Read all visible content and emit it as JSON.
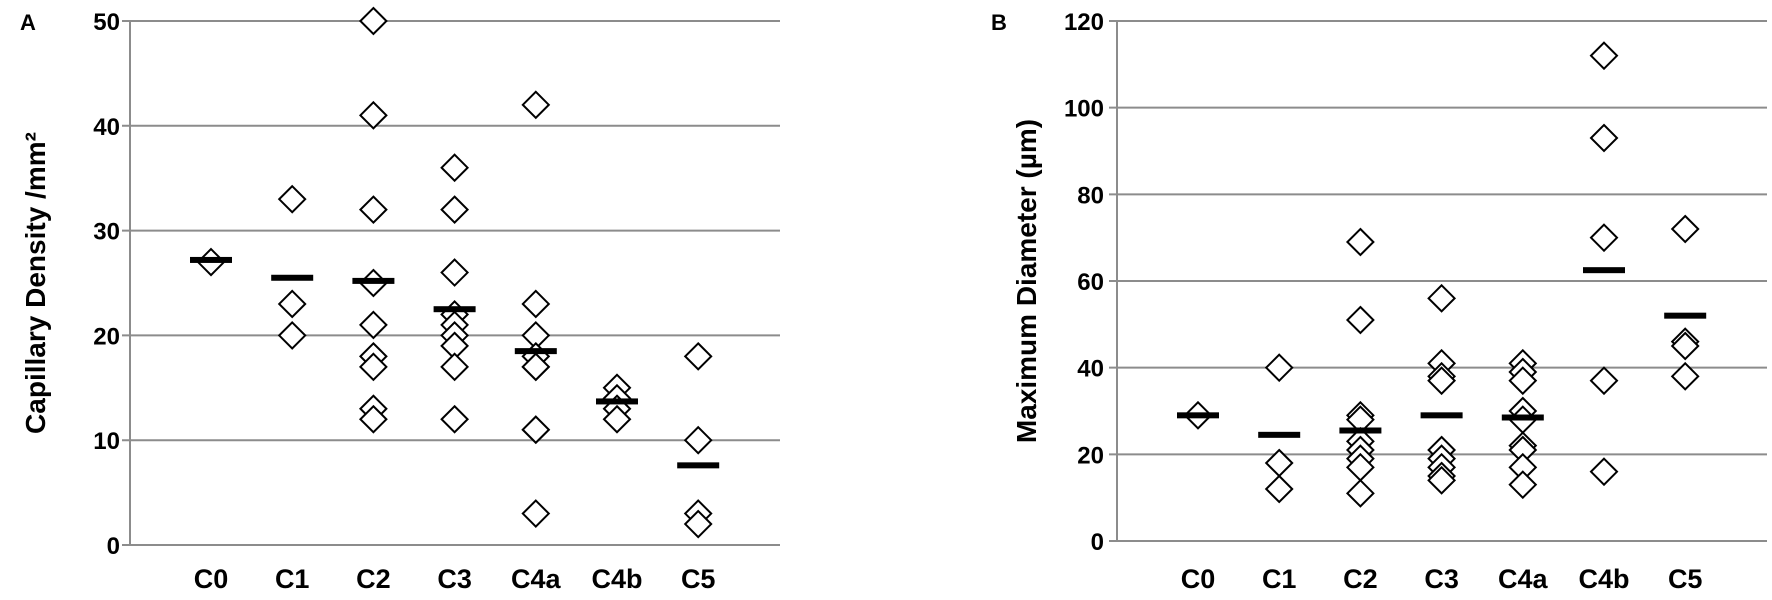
{
  "chart_data": [
    {
      "type": "scatter",
      "panel_label": "A",
      "title": "",
      "xlabel": "",
      "ylabel": "Capillary Density /mm²",
      "ylim": [
        0,
        50
      ],
      "yticks": [
        0,
        10,
        20,
        30,
        40,
        50
      ],
      "grid": true,
      "legend": null,
      "marker": "open-diamond",
      "mean_marker": "horizontal-bar",
      "categories": [
        "C0",
        "C1",
        "C2",
        "C3",
        "C4a",
        "C4b",
        "C5"
      ],
      "points": {
        "C0": [
          27
        ],
        "C1": [
          33,
          23,
          20
        ],
        "C2": [
          50,
          41,
          32,
          25,
          21,
          18,
          17,
          13,
          12
        ],
        "C3": [
          36,
          32,
          26,
          22,
          21,
          20,
          19,
          17,
          12
        ],
        "C4a": [
          42,
          23,
          20,
          18,
          17,
          17,
          11,
          11,
          3
        ],
        "C4b": [
          15,
          14,
          13,
          12
        ],
        "C5": [
          18,
          10,
          3,
          2
        ]
      },
      "means": [
        27.2,
        25.5,
        25.2,
        22.5,
        18.5,
        13.7,
        7.6
      ]
    },
    {
      "type": "scatter",
      "panel_label": "B",
      "title": "",
      "xlabel": "",
      "ylabel": "Maximum Diameter (µm)",
      "ylim": [
        0,
        120
      ],
      "yticks": [
        0,
        20,
        40,
        60,
        80,
        100,
        120
      ],
      "grid": true,
      "legend": null,
      "marker": "open-diamond",
      "mean_marker": "horizontal-bar",
      "categories": [
        "C0",
        "C1",
        "C2",
        "C3",
        "C4a",
        "C4b",
        "C5"
      ],
      "points": {
        "C0": [
          29
        ],
        "C1": [
          40,
          18,
          12
        ],
        "C2": [
          69,
          51,
          29,
          28,
          23,
          21,
          19,
          17,
          11
        ],
        "C3": [
          56,
          41,
          38,
          37,
          21,
          19,
          17,
          15,
          14
        ],
        "C4a": [
          41,
          39,
          37,
          30,
          28,
          22,
          21,
          17,
          13
        ],
        "C4b": [
          112,
          93,
          70,
          37,
          16
        ],
        "C5": [
          72,
          46,
          45,
          38
        ]
      },
      "means": [
        29,
        24.5,
        25.5,
        29,
        28.5,
        62.5,
        52
      ]
    }
  ],
  "panels": {
    "a": {
      "letter": "A",
      "ylabel": "Capillary Density /mm²"
    },
    "b": {
      "letter": "B",
      "ylabel": "Maximum Diameter (µm)"
    }
  },
  "colors": {
    "grid": "#8c8c8c",
    "marker_stroke": "#000000",
    "marker_fill": "#ffffff",
    "mean": "#000000"
  }
}
